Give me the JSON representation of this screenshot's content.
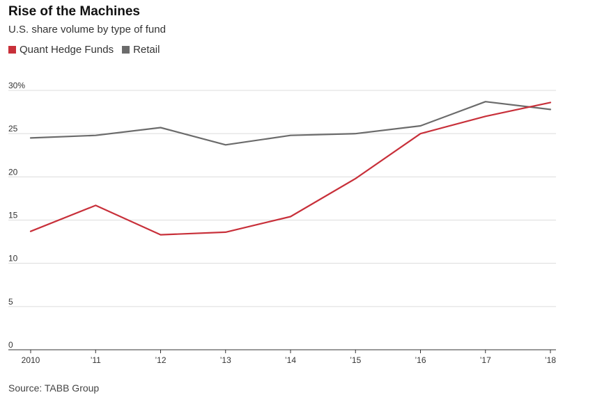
{
  "chart_data": {
    "type": "line",
    "title": "Rise of the Machines",
    "subtitle": "U.S. share volume by type of fund",
    "x": [
      "2010",
      "’11",
      "’12",
      "’13",
      "’14",
      "’15",
      "’16",
      "’17",
      "’18"
    ],
    "series": [
      {
        "name": "Quant Hedge Funds",
        "color": "#c8303a",
        "values": [
          13.7,
          16.7,
          13.3,
          13.6,
          15.4,
          19.8,
          25.0,
          27.0,
          28.6
        ]
      },
      {
        "name": "Retail",
        "color": "#6b6b6b",
        "values": [
          24.5,
          24.8,
          25.7,
          23.7,
          24.8,
          25.0,
          25.9,
          28.7,
          27.8
        ]
      }
    ],
    "yticks": [
      "0",
      "5",
      "10",
      "15",
      "20",
      "25",
      "30%"
    ],
    "ytick_values": [
      0,
      5,
      10,
      15,
      20,
      25,
      30
    ],
    "ylim": [
      0,
      30
    ],
    "grid": true,
    "legend_position": "top-left",
    "source": "Source: TABB Group"
  }
}
